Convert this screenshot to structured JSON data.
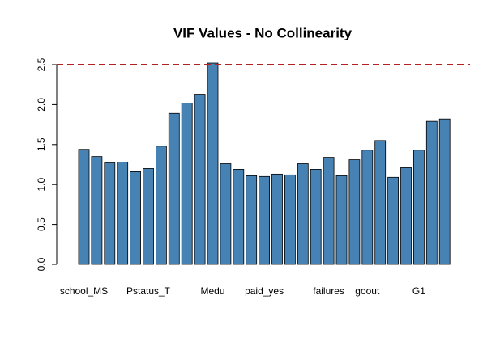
{
  "chart_data": {
    "type": "bar",
    "title": "VIF Values - No Collinearity",
    "categories": [
      "school_MS",
      null,
      null,
      null,
      null,
      "Pstatus_T",
      null,
      null,
      null,
      null,
      "Medu",
      null,
      null,
      null,
      "paid_yes",
      null,
      null,
      null,
      null,
      "failures",
      null,
      null,
      "goout",
      null,
      null,
      null,
      "G1",
      null,
      null
    ],
    "values": [
      1.44,
      1.35,
      1.27,
      1.28,
      1.16,
      1.2,
      1.48,
      1.89,
      2.02,
      2.13,
      2.52,
      1.26,
      1.19,
      1.11,
      1.1,
      1.13,
      1.12,
      1.26,
      1.19,
      1.34,
      1.11,
      1.31,
      1.43,
      1.55,
      1.09,
      1.21,
      1.43,
      1.79,
      1.82
    ],
    "color": "#4682b4",
    "ylim": [
      0,
      2.5
    ],
    "yticks": [
      {
        "value": 0,
        "label": "0.0"
      },
      {
        "value": 0.5,
        "label": "0.5"
      },
      {
        "value": 1,
        "label": "1.0"
      },
      {
        "value": 1.5,
        "label": "1.5"
      },
      {
        "value": 2,
        "label": "2.0"
      },
      {
        "value": 2.5,
        "label": "2.5"
      }
    ],
    "reference_line": {
      "value": 2.5,
      "color": "#b22222"
    }
  }
}
